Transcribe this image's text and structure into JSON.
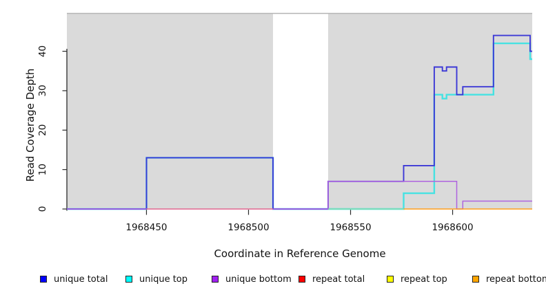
{
  "figure_bg": "#ffffff",
  "plot_bg_shade": "#dadada",
  "plot_top_border_color": "#b3b3b3",
  "axis_color": "#2a2a2a",
  "y_axis": {
    "title": "Read Coverage Depth",
    "ticks": [
      "0",
      "10",
      "20",
      "30",
      "40"
    ]
  },
  "x_axis": {
    "title": "Coordinate in Reference Genome",
    "ticks": [
      "1968450",
      "1968500",
      "1968550",
      "1968600"
    ]
  },
  "legend": {
    "items": [
      {
        "label": "unique total",
        "color": "#0000FF"
      },
      {
        "label": "unique top",
        "color": "#00FFFF"
      },
      {
        "label": "unique bottom",
        "color": "#A020F0"
      },
      {
        "label": "repeat total",
        "color": "#FF0000"
      },
      {
        "label": "repeat top",
        "color": "#FFFF00"
      },
      {
        "label": "repeat bottom",
        "color": "#FFA500"
      }
    ]
  },
  "chart_data": {
    "type": "line",
    "subtype": "step",
    "title": "",
    "xlabel": "Coordinate in Reference Genome",
    "ylabel": "Read Coverage Depth",
    "xlim": [
      1968411,
      1968639
    ],
    "ylim": [
      0,
      49.6
    ],
    "x_ticks": [
      1968450,
      1968500,
      1968550,
      1968600
    ],
    "y_ticks": [
      0,
      10,
      20,
      30,
      40
    ],
    "grid": false,
    "legend_position": "bottom",
    "shaded_regions": [
      {
        "x0": 1968411,
        "x1": 1968512
      },
      {
        "x0": 1968539,
        "x1": 1968639
      }
    ],
    "series": [
      {
        "name": "unique total",
        "legend_color": "#0000FF",
        "drawn_color": "#3c38d6",
        "width": 1.9,
        "draw_order": 2,
        "end_x": 1968639,
        "steps": [
          [
            1968411,
            0
          ],
          [
            1968450,
            13
          ],
          [
            1968512,
            0
          ],
          [
            1968539,
            7
          ],
          [
            1968576,
            11
          ],
          [
            1968591,
            36
          ],
          [
            1968595,
            35
          ],
          [
            1968597,
            36
          ],
          [
            1968602,
            29
          ],
          [
            1968605,
            31
          ],
          [
            1968620,
            44
          ],
          [
            1968638,
            40
          ]
        ]
      },
      {
        "name": "unique top",
        "legend_color": "#00FFFF",
        "drawn_color": "#46e2e2",
        "width": 2.4,
        "draw_order": 1,
        "end_x": 1968639,
        "steps": [
          [
            1968411,
            0
          ],
          [
            1968450,
            13
          ],
          [
            1968512,
            0
          ],
          [
            1968576,
            4
          ],
          [
            1968591,
            29
          ],
          [
            1968595,
            28
          ],
          [
            1968597,
            29
          ],
          [
            1968620,
            42
          ],
          [
            1968638,
            38
          ]
        ]
      },
      {
        "name": "unique bottom",
        "legend_color": "#A020F0",
        "drawn_color": "#ae63df",
        "width": 1.5,
        "draw_order": 3,
        "end_x": 1968639,
        "steps": [
          [
            1968411,
            0
          ],
          [
            1968539,
            7
          ],
          [
            1968602,
            0
          ],
          [
            1968605,
            2
          ]
        ]
      },
      {
        "name": "repeat total",
        "legend_color": "#FF0000",
        "drawn_color": "#f1737f",
        "width": 1.3,
        "draw_order": 4,
        "end_x": 1968512,
        "steps": [
          [
            1968450,
            0
          ]
        ]
      },
      {
        "name": "repeat top",
        "legend_color": "#FFFF00",
        "drawn_color": "#9cd8a2",
        "width": 1.3,
        "draw_order": 5,
        "end_x": 1968576,
        "steps": [
          [
            1968539,
            0
          ]
        ]
      },
      {
        "name": "repeat bottom",
        "legend_color": "#FFA500",
        "drawn_color": "#ff9e1b",
        "width": 1.6,
        "draw_order": 6,
        "end_x": 1968639,
        "steps": [
          [
            1968576,
            0
          ]
        ]
      }
    ]
  }
}
